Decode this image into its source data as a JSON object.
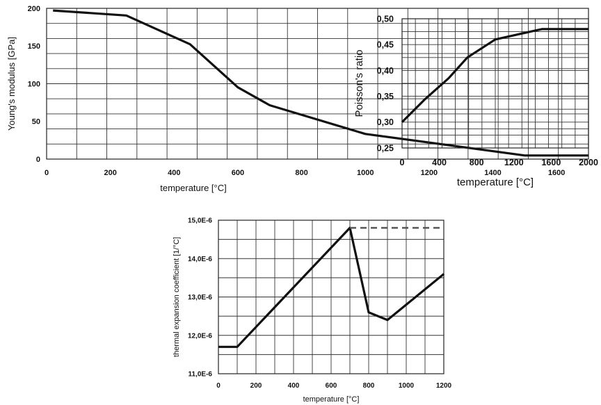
{
  "chart_data": [
    {
      "type": "line",
      "xlabel": "temperature [°C]",
      "ylabel": "Young's modulus [GPa]",
      "xlim": [
        0,
        1700
      ],
      "ylim": [
        0,
        210
      ],
      "x_ticks": [
        0,
        200,
        400,
        600,
        800,
        1000,
        1200,
        1400,
        1600
      ],
      "y_ticks": [
        0,
        50,
        100,
        150,
        200
      ],
      "grid": true,
      "series": [
        {
          "x": [
            20,
            250,
            450,
            600,
            700,
            1000,
            1500,
            1700
          ],
          "y": [
            207,
            200,
            160,
            100,
            75,
            35,
            5,
            5
          ]
        }
      ]
    },
    {
      "type": "line",
      "xlabel": "temperature [°C]",
      "ylabel": "Poisson's ratio",
      "xlim": [
        0,
        2000
      ],
      "ylim": [
        0.25,
        0.5
      ],
      "x_ticks": [
        0,
        400,
        800,
        1200,
        1600,
        2000
      ],
      "y_ticks": [
        "0,25",
        "0,30",
        "0,35",
        "0,40",
        "0,45",
        "0,50"
      ],
      "grid": true,
      "series": [
        {
          "x": [
            0,
            250,
            500,
            700,
            1000,
            1200,
            1500,
            2000
          ],
          "y": [
            0.3,
            0.345,
            0.385,
            0.425,
            0.46,
            0.468,
            0.48,
            0.48
          ]
        }
      ]
    },
    {
      "type": "line",
      "xlabel": "temperature [°C]",
      "ylabel": "thermal expansion coefficient [1/°C]",
      "xlim": [
        0,
        1200
      ],
      "ylim": [
        1.1e-05,
        1.5e-05
      ],
      "x_ticks": [
        0,
        200,
        400,
        600,
        800,
        1000,
        1200
      ],
      "y_ticks": [
        "11,0E-6",
        "12,0E-6",
        "13,0E-6",
        "14,0E-6",
        "15,0E-6"
      ],
      "grid": true,
      "series": [
        {
          "x": [
            0,
            100,
            700,
            800,
            900,
            1200
          ],
          "y": [
            1.17e-05,
            1.17e-05,
            1.48e-05,
            1.26e-05,
            1.24e-05,
            1.36e-05
          ]
        },
        {
          "line_style": "dashed",
          "x": [
            700,
            1200
          ],
          "y": [
            1.48e-05,
            1.48e-05
          ]
        }
      ]
    }
  ]
}
